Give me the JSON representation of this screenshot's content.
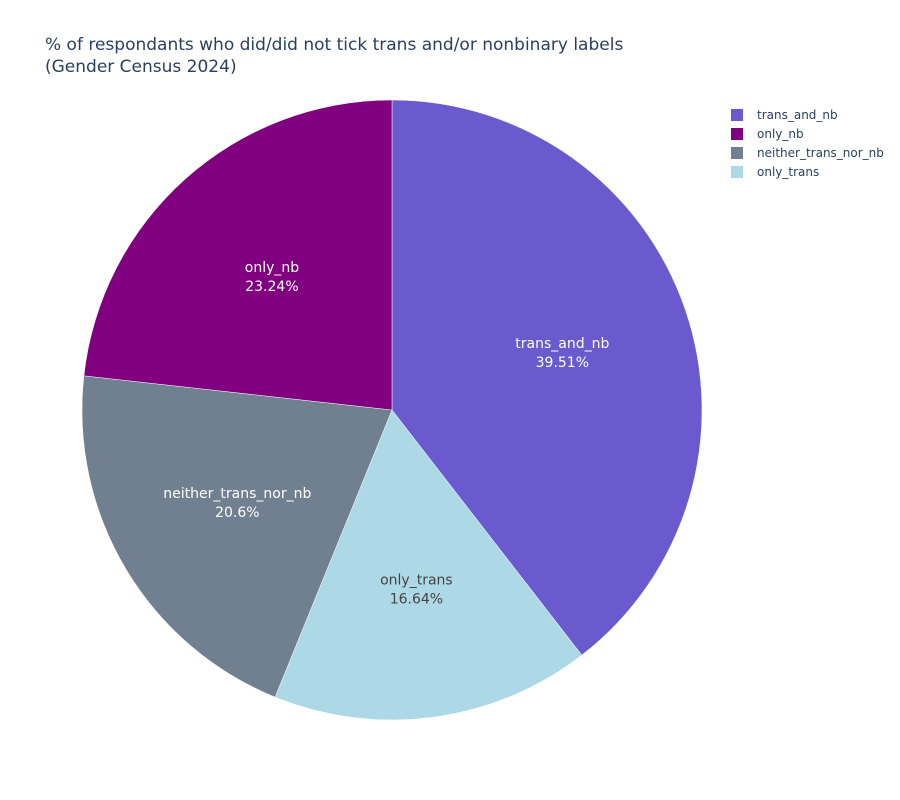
{
  "chart_data": {
    "type": "pie",
    "title_lines": [
      "% of respondants who did/did not tick trans and/or nonbinary labels",
      "(Gender Census 2024)"
    ],
    "slices": [
      {
        "name": "trans_and_nb",
        "value": 39.51,
        "label": "39.51%",
        "color": "#6a5acd",
        "text_color": "#ffffff"
      },
      {
        "name": "only_trans",
        "value": 16.64,
        "label": "16.64%",
        "color": "#add8e6",
        "text_color": "#444444"
      },
      {
        "name": "neither_trans_nor_nb",
        "value": 20.6,
        "label": "20.6%",
        "color": "#708090",
        "text_color": "#ffffff"
      },
      {
        "name": "only_nb",
        "value": 23.24,
        "label": "23.24%",
        "color": "#800080",
        "text_color": "#ffffff"
      }
    ],
    "direction": "clockwise",
    "start": "12 o'clock",
    "legend": {
      "placement": "top-right",
      "order": [
        "trans_and_nb",
        "only_nb",
        "neither_trans_nor_nb",
        "only_trans"
      ]
    }
  }
}
